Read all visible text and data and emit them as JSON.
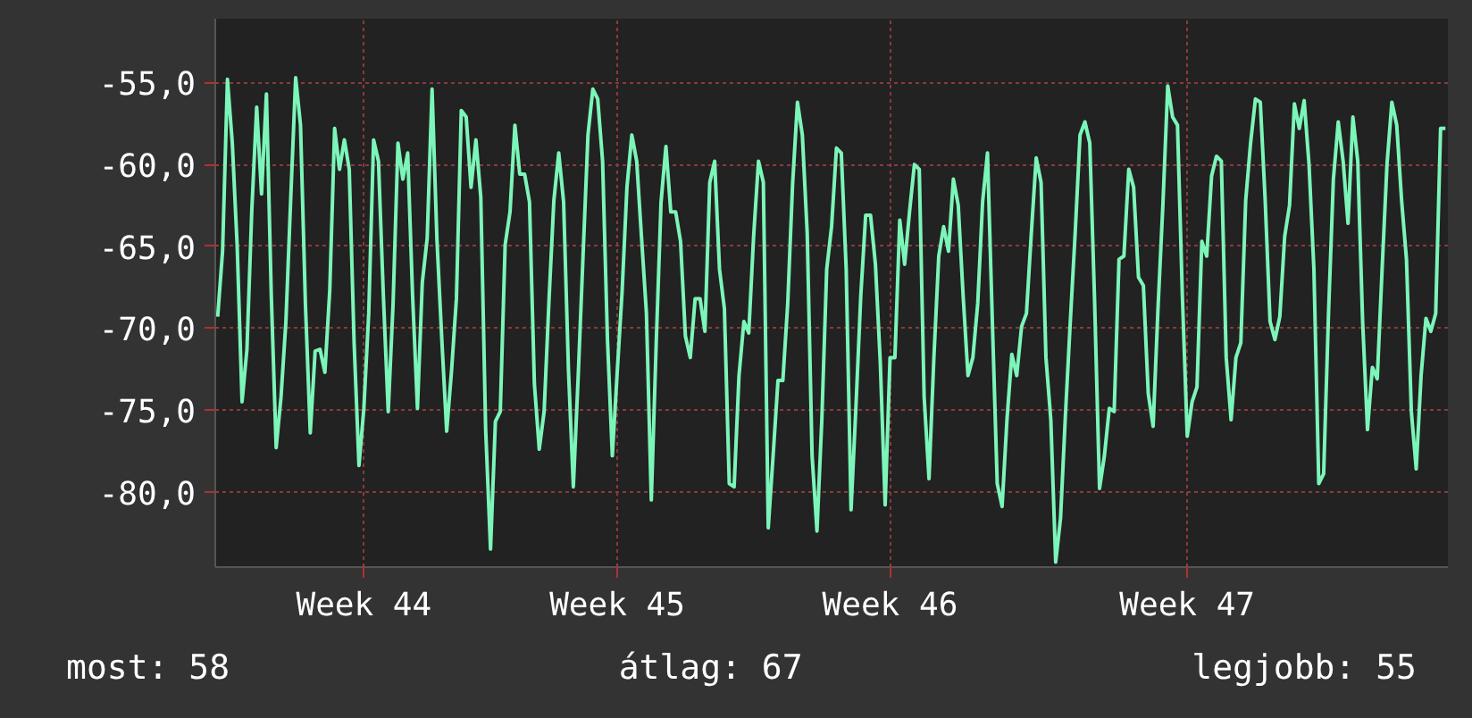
{
  "chart_data": {
    "type": "line",
    "ylim": [
      -84.6,
      -51.1
    ],
    "categories": [
      null,
      null,
      null,
      null,
      null,
      null,
      null,
      null,
      null,
      null,
      null,
      null,
      null,
      null,
      null,
      null,
      null,
      null,
      null,
      null,
      null,
      null,
      null,
      null,
      null,
      null,
      null,
      null,
      null,
      null,
      "Week 44",
      null,
      null,
      null,
      null,
      null,
      null,
      null,
      null,
      null,
      null,
      null,
      null,
      null,
      null,
      null,
      null,
      null,
      null,
      null,
      null,
      null,
      null,
      null,
      null,
      null,
      null,
      null,
      null,
      null,
      null,
      null,
      null,
      null,
      null,
      null,
      null,
      null,
      null,
      null,
      null,
      null,
      null,
      null,
      null,
      null,
      null,
      null,
      null,
      null,
      null,
      null,
      "Week 45",
      null,
      null,
      null,
      null,
      null,
      null,
      null,
      null,
      null,
      null,
      null,
      null,
      null,
      null,
      null,
      null,
      null,
      null,
      null,
      null,
      null,
      null,
      null,
      null,
      null,
      null,
      null,
      null,
      null,
      null,
      null,
      null,
      null,
      null,
      null,
      null,
      null,
      null,
      null,
      null,
      null,
      null,
      null,
      null,
      null,
      null,
      null,
      null,
      null,
      null,
      null,
      null,
      null,
      null,
      null,
      "Week 46",
      null,
      null,
      null,
      null,
      null,
      null,
      null,
      null,
      null,
      null,
      null,
      null,
      null,
      null,
      null,
      null,
      null,
      null,
      null,
      null,
      null,
      null,
      null,
      null,
      null,
      null,
      null,
      null,
      null,
      null,
      null,
      null,
      null,
      null,
      null,
      null,
      null,
      null,
      null,
      null,
      null,
      null,
      null,
      null,
      null,
      null,
      null,
      null,
      null,
      null,
      null,
      null,
      null,
      null,
      null,
      null,
      null,
      null,
      null,
      null,
      "Week 47",
      null,
      null,
      null,
      null,
      null,
      null,
      null,
      null,
      null,
      null,
      null,
      null,
      null,
      null,
      null,
      null,
      null,
      null,
      null,
      null,
      null,
      null,
      null,
      null,
      null,
      null,
      null,
      null,
      null,
      null,
      null,
      null,
      null,
      null,
      null,
      null,
      null,
      null,
      null,
      null,
      null,
      null,
      null,
      null,
      null,
      null,
      null,
      null,
      null,
      null,
      null,
      null,
      null
    ],
    "yticks": [
      {
        "value": -55,
        "label": "-55,0"
      },
      {
        "value": -60,
        "label": "-60,0"
      },
      {
        "value": -65,
        "label": "-65,0"
      },
      {
        "value": -70,
        "label": "-70,0"
      },
      {
        "value": -75,
        "label": "-75,0"
      },
      {
        "value": -80,
        "label": "-80,0"
      }
    ],
    "grid": true,
    "marker": "none",
    "line_style": "solid",
    "annotations": [
      "most: 58",
      "átlag: 67",
      "legjobb: 55"
    ],
    "series": [
      {
        "color": "#7cf5b8",
        "values": [
          -69.3,
          -65.3,
          -54.8,
          -58.7,
          -65.0,
          -74.5,
          -71.3,
          -62.8,
          -56.5,
          -61.8,
          -55.7,
          -68.0,
          -77.3,
          -74.2,
          -69.6,
          -62.0,
          -54.7,
          -57.6,
          -68.5,
          -76.4,
          -71.4,
          -71.3,
          -72.7,
          -67.7,
          -57.8,
          -60.3,
          -58.5,
          -60.3,
          -70.9,
          -78.4,
          -74.9,
          -69.1,
          -58.5,
          -59.8,
          -68.0,
          -75.1,
          -68.5,
          -58.7,
          -60.9,
          -59.3,
          -68.0,
          -74.9,
          -67.2,
          -64.5,
          -55.4,
          -64.6,
          -70.7,
          -76.3,
          -72.6,
          -68.2,
          -56.7,
          -57.1,
          -61.4,
          -58.5,
          -62.0,
          -76.2,
          -83.5,
          -75.7,
          -75.1,
          -64.9,
          -62.9,
          -57.6,
          -60.6,
          -60.6,
          -62.3,
          -73.4,
          -77.4,
          -75.1,
          -68.3,
          -62.2,
          -59.3,
          -62.3,
          -72.6,
          -79.7,
          -72.9,
          -65.5,
          -58.2,
          -55.4,
          -56.0,
          -59.8,
          -70.7,
          -77.8,
          -72.7,
          -67.8,
          -61.4,
          -58.2,
          -59.8,
          -64.5,
          -69.1,
          -80.5,
          -71.0,
          -62.3,
          -58.9,
          -62.9,
          -62.9,
          -64.7,
          -70.5,
          -71.8,
          -68.2,
          -68.2,
          -70.2,
          -61.1,
          -59.8,
          -66.4,
          -68.8,
          -79.5,
          -79.7,
          -72.9,
          -69.6,
          -70.3,
          -64.4,
          -59.8,
          -61.1,
          -82.2,
          -77.8,
          -73.2,
          -73.2,
          -68.5,
          -61.2,
          -56.2,
          -58.2,
          -64.2,
          -77.8,
          -82.4,
          -75.6,
          -66.4,
          -63.8,
          -59.0,
          -59.3,
          -66.4,
          -81.1,
          -74.8,
          -68.0,
          -63.1,
          -63.1,
          -66.1,
          -72.1,
          -80.8,
          -71.8,
          -71.8,
          -63.4,
          -66.1,
          -62.9,
          -60.0,
          -60.3,
          -74.2,
          -79.2,
          -71.8,
          -65.6,
          -63.8,
          -65.3,
          -60.9,
          -62.5,
          -68.0,
          -72.9,
          -71.8,
          -68.5,
          -62.3,
          -59.3,
          -69.6,
          -79.5,
          -80.9,
          -75.6,
          -71.6,
          -72.9,
          -69.9,
          -69.1,
          -64.2,
          -59.6,
          -61.1,
          -71.8,
          -75.6,
          -84.3,
          -81.6,
          -75.3,
          -69.6,
          -64.2,
          -58.2,
          -57.4,
          -58.7,
          -68.5,
          -79.8,
          -77.8,
          -74.9,
          -75.1,
          -65.8,
          -65.6,
          -60.3,
          -61.4,
          -66.9,
          -67.4,
          -74.0,
          -76.0,
          -68.8,
          -62.5,
          -55.2,
          -57.1,
          -57.6,
          -68.0,
          -76.6,
          -74.5,
          -73.6,
          -64.7,
          -65.6,
          -60.7,
          -59.5,
          -59.8,
          -71.8,
          -75.6,
          -71.8,
          -70.9,
          -62.2,
          -58.7,
          -56.0,
          -56.2,
          -62.2,
          -69.6,
          -70.7,
          -69.3,
          -64.4,
          -62.5,
          -56.3,
          -57.8,
          -56.1,
          -60.0,
          -66.4,
          -79.5,
          -78.9,
          -69.1,
          -60.9,
          -57.4,
          -59.8,
          -63.6,
          -57.1,
          -59.8,
          -69.6,
          -76.2,
          -72.4,
          -73.1,
          -66.4,
          -60.0,
          -56.2,
          -57.6,
          -62.2,
          -65.8,
          -75.1,
          -78.6,
          -72.9,
          -69.4,
          -70.2,
          -69.1,
          -57.8,
          -57.8
        ]
      }
    ]
  }
}
